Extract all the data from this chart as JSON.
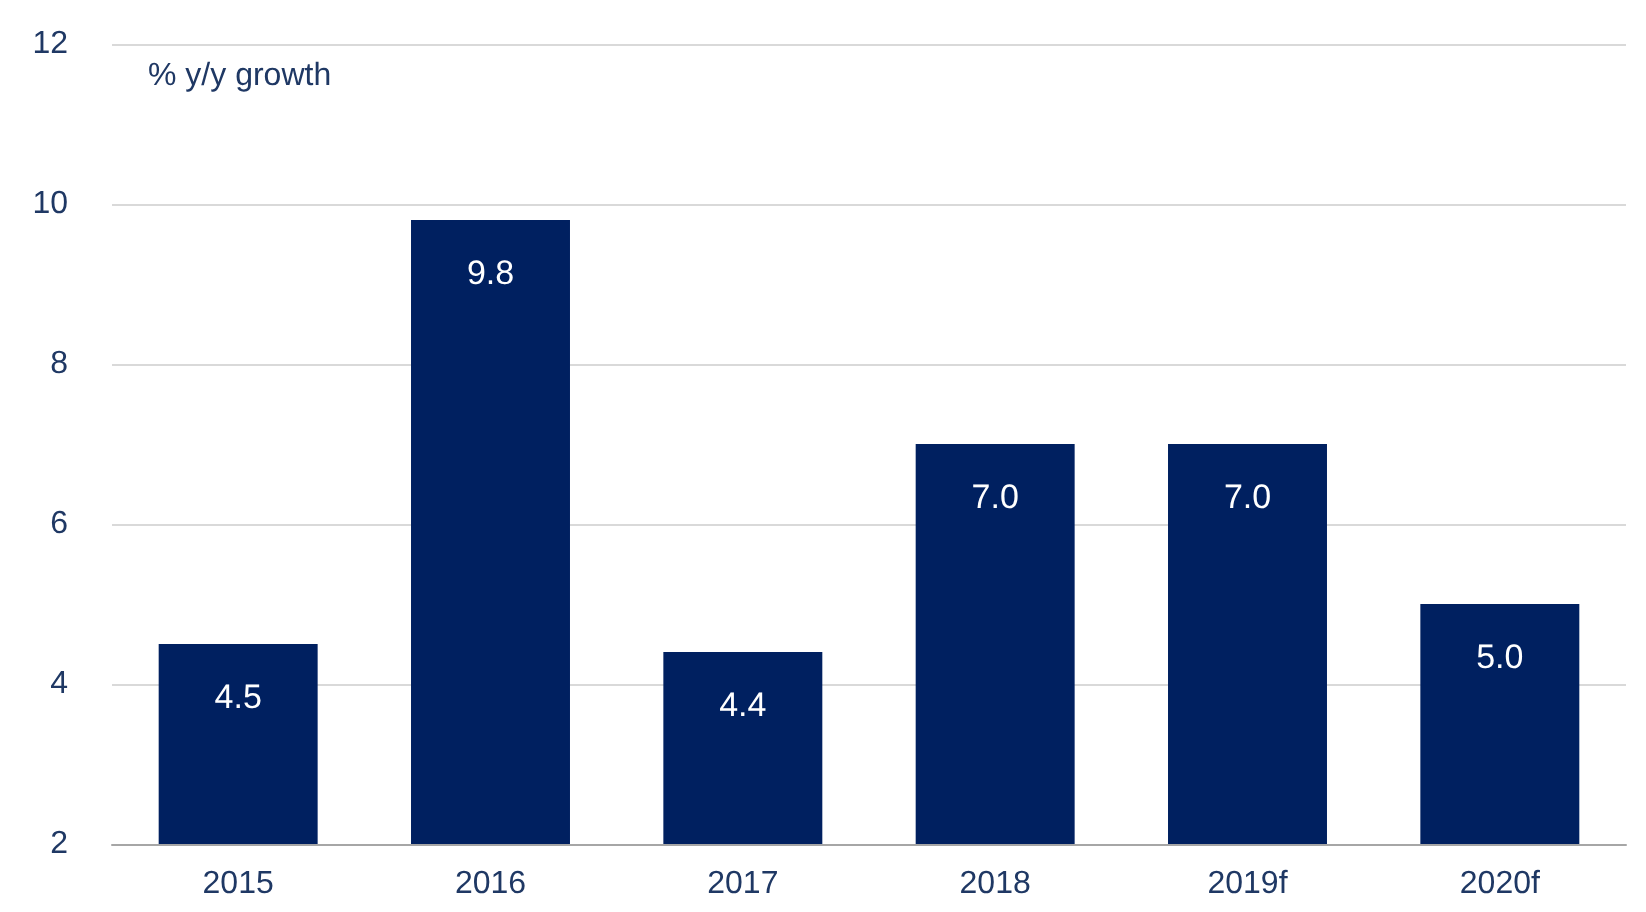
{
  "chart_data": {
    "type": "bar",
    "ylabel": "% y/y growth",
    "categories": [
      "2015",
      "2016",
      "2017",
      "2018",
      "2019f",
      "2020f"
    ],
    "values": [
      4.5,
      9.8,
      4.4,
      7.0,
      7.0,
      5.0
    ],
    "value_labels": [
      "4.5",
      "9.8",
      "4.4",
      "7.0",
      "7.0",
      "5.0"
    ],
    "color": "#002060",
    "ylim": [
      2,
      12
    ],
    "yticks": [
      2,
      4,
      6,
      8,
      10,
      12
    ],
    "grid": "y"
  }
}
